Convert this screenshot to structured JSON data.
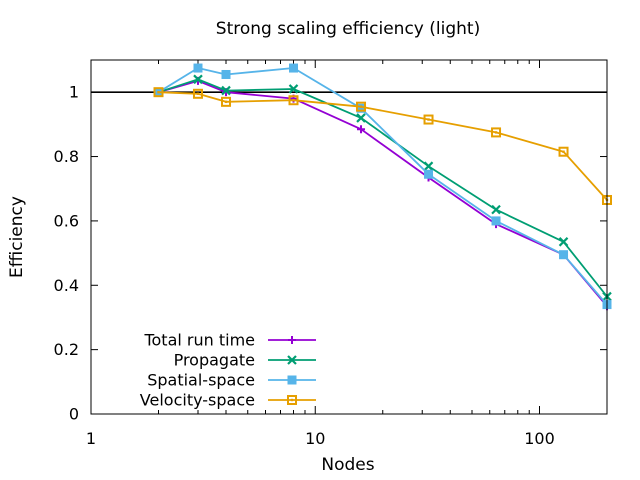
{
  "chart_data": {
    "type": "line",
    "title": "Strong scaling efficiency (light)",
    "xlabel": "Nodes",
    "ylabel": "Efficiency",
    "xscale": "log",
    "xlim": [
      1,
      200
    ],
    "ylim": [
      0,
      1.1
    ],
    "xticks": [
      1,
      10,
      100
    ],
    "xtick_labels": [
      "1",
      "10",
      "100"
    ],
    "yticks": [
      0,
      0.2,
      0.4,
      0.6,
      0.8,
      1
    ],
    "ytick_labels": [
      "0",
      "0.2",
      "0.4",
      "0.6",
      "0.8",
      "1"
    ],
    "reference_line": 1,
    "grid": false,
    "legend_position": "bottom-left",
    "series": [
      {
        "name": "Total run time",
        "color": "#9400d3",
        "marker": "plus",
        "x": [
          2,
          3,
          4,
          8,
          16,
          32,
          64,
          128,
          200
        ],
        "y": [
          1.0,
          1.035,
          1.0,
          0.98,
          0.885,
          0.735,
          0.59,
          0.495,
          0.335
        ]
      },
      {
        "name": "Propagate",
        "color": "#009e73",
        "marker": "cross",
        "x": [
          2,
          3,
          4,
          8,
          16,
          32,
          64,
          128,
          200
        ],
        "y": [
          1.0,
          1.04,
          1.005,
          1.01,
          0.92,
          0.77,
          0.635,
          0.535,
          0.365
        ]
      },
      {
        "name": "Spatial-space",
        "color": "#56b4e9",
        "marker": "square-star",
        "x": [
          2,
          3,
          4,
          8,
          16,
          32,
          64,
          128,
          200
        ],
        "y": [
          1.0,
          1.075,
          1.055,
          1.075,
          0.95,
          0.745,
          0.6,
          0.495,
          0.34
        ]
      },
      {
        "name": "Velocity-space",
        "color": "#e69f00",
        "marker": "open-square",
        "x": [
          2,
          3,
          4,
          8,
          16,
          32,
          64,
          128,
          200
        ],
        "y": [
          1.0,
          0.995,
          0.97,
          0.975,
          0.955,
          0.915,
          0.875,
          0.815,
          0.665
        ]
      }
    ]
  }
}
